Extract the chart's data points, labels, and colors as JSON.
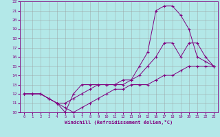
{
  "xlabel": "Windchill (Refroidissement éolien,°C)",
  "bg_color": "#b3e8e8",
  "line_color": "#800080",
  "grid_color": "#999999",
  "xlim": [
    -0.5,
    23.5
  ],
  "ylim": [
    10,
    22
  ],
  "xticks": [
    0,
    1,
    2,
    3,
    4,
    5,
    6,
    7,
    8,
    9,
    10,
    11,
    12,
    13,
    14,
    15,
    16,
    17,
    18,
    19,
    20,
    21,
    22,
    23
  ],
  "yticks": [
    10,
    11,
    12,
    13,
    14,
    15,
    16,
    17,
    18,
    19,
    20,
    21,
    22
  ],
  "line1_x": [
    0,
    1,
    2,
    3,
    4,
    5,
    6,
    7,
    8,
    9,
    10,
    11,
    12,
    13,
    14,
    15,
    16,
    17,
    18,
    19,
    20,
    21,
    22,
    23
  ],
  "line1_y": [
    12,
    12,
    12,
    11.5,
    11,
    10.5,
    10,
    10.5,
    11,
    11.5,
    12,
    12.5,
    12.5,
    13,
    13,
    13,
    13.5,
    14,
    14,
    14.5,
    15,
    15,
    15,
    15
  ],
  "line2_x": [
    0,
    1,
    2,
    3,
    4,
    5,
    6,
    7,
    8,
    9,
    10,
    11,
    12,
    13,
    14,
    15,
    16,
    17,
    18,
    19,
    20,
    21,
    22,
    23
  ],
  "line2_y": [
    12,
    12,
    12,
    11.5,
    11,
    11,
    11.5,
    12,
    12.5,
    13,
    13,
    13,
    13,
    13.5,
    14,
    15,
    16,
    17.5,
    17.5,
    16,
    17.5,
    17.5,
    16,
    15
  ],
  "line3_x": [
    0,
    1,
    2,
    3,
    4,
    5,
    6,
    7,
    8,
    9,
    10,
    11,
    12,
    13,
    14,
    15,
    16,
    17,
    18,
    19,
    20,
    21,
    22,
    23
  ],
  "line3_y": [
    12,
    12,
    12,
    11.5,
    11,
    10,
    12,
    13,
    13,
    13,
    13,
    13,
    13.5,
    13.5,
    15,
    16.5,
    21,
    21.5,
    21.5,
    20.5,
    19,
    16,
    15.5,
    15
  ]
}
